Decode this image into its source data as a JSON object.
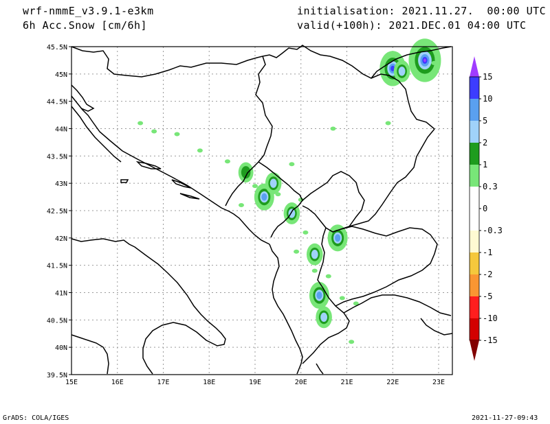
{
  "header": {
    "model": "wrf-nmmE_v3.9.1-e3km",
    "field": "6h Acc.Snow [cm/6h]",
    "init": "initialisation: 2021.11.27.  00:00 UTC",
    "valid": "valid(+100h): 2021.DEC.01 04:00 UTC"
  },
  "footer": {
    "left": "GrADS: COLA/IGES",
    "right": "2021-11-27-09:43"
  },
  "axes": {
    "lon_labels": [
      "15E",
      "16E",
      "17E",
      "18E",
      "19E",
      "20E",
      "21E",
      "22E",
      "23E"
    ],
    "lat_labels": [
      "39.5N",
      "40N",
      "40.5N",
      "41N",
      "41.5N",
      "42N",
      "42.5N",
      "43N",
      "43.5N",
      "44N",
      "44.5N",
      "45N",
      "45.5N"
    ]
  },
  "colorbar": {
    "labels": [
      "15",
      "10",
      "5",
      "2",
      "1",
      "0.3",
      "0",
      "-0.3",
      "-1",
      "-2",
      "-5",
      "-10",
      "-15"
    ],
    "colors": [
      "#3c3cff",
      "#5aa0f0",
      "#a0d2fa",
      "#1e9c1e",
      "#78e678",
      "#ffffff",
      "#ffffff",
      "#fffad2",
      "#f5c83c",
      "#fa9632",
      "#ff1e1e",
      "#d20000",
      "#a00000"
    ],
    "top_arrow_color": "#a03cff",
    "bottom_arrow_color": "#820000"
  },
  "chart_data": {
    "type": "map",
    "projection": "lat-lon",
    "lon_range": [
      15,
      23.3
    ],
    "lat_range": [
      39.5,
      45.5
    ],
    "variable": "6h accumulated snow",
    "units": "cm/6h",
    "contour_levels": [
      -15,
      -10,
      -5,
      -2,
      -1,
      -0.3,
      0,
      0.3,
      1,
      2,
      5,
      10,
      15
    ],
    "grid": true,
    "snow_areas": [
      {
        "lon": 22.0,
        "lat": 45.1,
        "level": 10
      },
      {
        "lon": 22.7,
        "lat": 45.25,
        "level": 15
      },
      {
        "lon": 22.2,
        "lat": 45.05,
        "level": 2
      },
      {
        "lon": 19.2,
        "lat": 42.75,
        "level": 5
      },
      {
        "lon": 19.4,
        "lat": 43.0,
        "level": 2
      },
      {
        "lon": 19.8,
        "lat": 42.45,
        "level": 2
      },
      {
        "lon": 20.8,
        "lat": 42.0,
        "level": 5
      },
      {
        "lon": 20.3,
        "lat": 41.7,
        "level": 2
      },
      {
        "lon": 20.4,
        "lat": 40.95,
        "level": 5
      },
      {
        "lon": 20.5,
        "lat": 40.55,
        "level": 2
      },
      {
        "lon": 18.8,
        "lat": 43.2,
        "level": 1
      }
    ]
  }
}
